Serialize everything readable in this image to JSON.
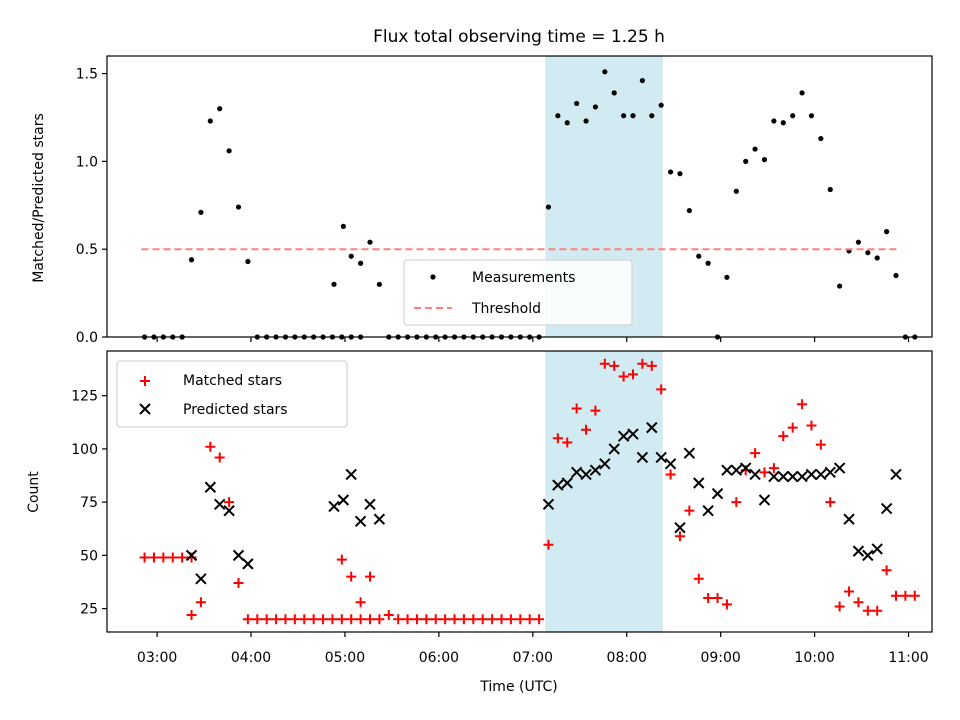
{
  "chart_data": {
    "type": "scatter",
    "title": "Flux total observing time = 1.25 h",
    "xlabel": "Time (UTC)",
    "x_tick_labels": [
      "03:00",
      "04:00",
      "05:00",
      "06:00",
      "07:00",
      "08:00",
      "09:00",
      "10:00",
      "11:00"
    ],
    "xlim": [
      "02:28",
      "11:15"
    ],
    "highlight_span": [
      "07:08",
      "08:23"
    ],
    "highlight_color": "#add8e6",
    "panels": [
      {
        "ylabel": "Matched/Predicted stars",
        "ylim": [
          0,
          1.6
        ],
        "y_ticks": [
          0.0,
          0.5,
          1.0,
          1.5
        ],
        "y_tick_labels": [
          "0.0",
          "0.5",
          "1.0",
          "1.5"
        ],
        "legend_position": "lower center",
        "legend_entries": [
          "Measurements",
          "Threshold"
        ],
        "series": [
          {
            "name": "Measurements",
            "marker": "dot",
            "color": "#000000",
            "points": [
              [
                "02:52",
                0
              ],
              [
                "02:58",
                0
              ],
              [
                "03:04",
                0
              ],
              [
                "03:10",
                0
              ],
              [
                "03:16",
                0
              ],
              [
                "03:22",
                0.44
              ],
              [
                "03:28",
                0.71
              ],
              [
                "03:34",
                1.23
              ],
              [
                "03:40",
                1.3
              ],
              [
                "03:46",
                1.06
              ],
              [
                "03:52",
                0.74
              ],
              [
                "03:58",
                0.43
              ],
              [
                "04:04",
                0
              ],
              [
                "04:10",
                0
              ],
              [
                "04:16",
                0
              ],
              [
                "04:22",
                0
              ],
              [
                "04:28",
                0
              ],
              [
                "04:34",
                0
              ],
              [
                "04:40",
                0
              ],
              [
                "04:46",
                0
              ],
              [
                "04:52",
                0
              ],
              [
                "04:58",
                0
              ],
              [
                "05:04",
                0
              ],
              [
                "05:10",
                0
              ],
              [
                "04:53",
                0.3
              ],
              [
                "04:59",
                0.63
              ],
              [
                "05:04",
                0.46
              ],
              [
                "05:10",
                0.42
              ],
              [
                "05:16",
                0.54
              ],
              [
                "05:22",
                0.3
              ],
              [
                "05:28",
                0
              ],
              [
                "05:34",
                0
              ],
              [
                "05:40",
                0
              ],
              [
                "05:46",
                0
              ],
              [
                "05:52",
                0
              ],
              [
                "05:58",
                0
              ],
              [
                "06:04",
                0
              ],
              [
                "06:10",
                0
              ],
              [
                "06:16",
                0
              ],
              [
                "06:22",
                0
              ],
              [
                "06:28",
                0
              ],
              [
                "06:34",
                0
              ],
              [
                "06:40",
                0
              ],
              [
                "06:46",
                0
              ],
              [
                "06:52",
                0
              ],
              [
                "06:58",
                0
              ],
              [
                "07:04",
                0
              ],
              [
                "07:10",
                0.74
              ],
              [
                "07:16",
                1.26
              ],
              [
                "07:22",
                1.22
              ],
              [
                "07:28",
                1.33
              ],
              [
                "07:34",
                1.23
              ],
              [
                "07:40",
                1.31
              ],
              [
                "07:46",
                1.51
              ],
              [
                "07:52",
                1.39
              ],
              [
                "07:58",
                1.26
              ],
              [
                "08:04",
                1.26
              ],
              [
                "08:10",
                1.46
              ],
              [
                "08:16",
                1.26
              ],
              [
                "08:22",
                1.32
              ],
              [
                "08:28",
                0.94
              ],
              [
                "08:34",
                0.93
              ],
              [
                "08:40",
                0.72
              ],
              [
                "08:46",
                0.46
              ],
              [
                "08:52",
                0.42
              ],
              [
                "08:58",
                0
              ],
              [
                "09:04",
                0.34
              ],
              [
                "09:10",
                0.83
              ],
              [
                "09:16",
                1.0
              ],
              [
                "09:22",
                1.07
              ],
              [
                "09:28",
                1.01
              ],
              [
                "09:34",
                1.23
              ],
              [
                "09:40",
                1.22
              ],
              [
                "09:46",
                1.26
              ],
              [
                "09:52",
                1.39
              ],
              [
                "09:58",
                1.26
              ],
              [
                "10:04",
                1.13
              ],
              [
                "10:10",
                0.84
              ],
              [
                "10:16",
                0.29
              ],
              [
                "10:22",
                0.49
              ],
              [
                "10:28",
                0.54
              ],
              [
                "10:34",
                0.48
              ],
              [
                "10:40",
                0.45
              ],
              [
                "10:46",
                0.6
              ],
              [
                "10:52",
                0.35
              ],
              [
                "10:58",
                0
              ],
              [
                "11:04",
                0
              ]
            ]
          },
          {
            "name": "Threshold",
            "marker": "dashed-line",
            "color": "#ff7f7f",
            "x": [
              "02:50",
              "10:53"
            ],
            "y": [
              0.5,
              0.5
            ]
          }
        ]
      },
      {
        "ylabel": "Count",
        "ylim": [
          14,
          146
        ],
        "y_ticks": [
          25,
          50,
          75,
          100,
          125
        ],
        "y_tick_labels": [
          "25",
          "50",
          "75",
          "100",
          "125"
        ],
        "legend_position": "upper left",
        "legend_entries": [
          "Matched stars",
          "Predicted stars"
        ],
        "series": [
          {
            "name": "Matched stars",
            "marker": "plus",
            "color": "#ff0000",
            "points": [
              [
                "02:52",
                49
              ],
              [
                "02:58",
                49
              ],
              [
                "03:04",
                49
              ],
              [
                "03:10",
                49
              ],
              [
                "03:16",
                49
              ],
              [
                "03:22",
                49
              ],
              [
                "03:22",
                22
              ],
              [
                "03:28",
                28
              ],
              [
                "03:34",
                101
              ],
              [
                "03:40",
                96
              ],
              [
                "03:46",
                75
              ],
              [
                "03:52",
                37
              ],
              [
                "03:58",
                20
              ],
              [
                "04:04",
                20
              ],
              [
                "04:10",
                20
              ],
              [
                "04:16",
                20
              ],
              [
                "04:22",
                20
              ],
              [
                "04:28",
                20
              ],
              [
                "04:34",
                20
              ],
              [
                "04:40",
                20
              ],
              [
                "04:46",
                20
              ],
              [
                "04:52",
                20
              ],
              [
                "04:58",
                20
              ],
              [
                "05:04",
                20
              ],
              [
                "05:10",
                20
              ],
              [
                "05:16",
                20
              ],
              [
                "05:22",
                20
              ],
              [
                "05:28",
                22
              ],
              [
                "04:58",
                48
              ],
              [
                "05:04",
                40
              ],
              [
                "05:10",
                28
              ],
              [
                "05:16",
                40
              ],
              [
                "05:34",
                20
              ],
              [
                "05:40",
                20
              ],
              [
                "05:46",
                20
              ],
              [
                "05:52",
                20
              ],
              [
                "05:58",
                20
              ],
              [
                "06:04",
                20
              ],
              [
                "06:10",
                20
              ],
              [
                "06:16",
                20
              ],
              [
                "06:22",
                20
              ],
              [
                "06:28",
                20
              ],
              [
                "06:34",
                20
              ],
              [
                "06:40",
                20
              ],
              [
                "06:46",
                20
              ],
              [
                "06:52",
                20
              ],
              [
                "06:58",
                20
              ],
              [
                "07:04",
                20
              ],
              [
                "07:10",
                55
              ],
              [
                "07:16",
                105
              ],
              [
                "07:22",
                103
              ],
              [
                "07:28",
                119
              ],
              [
                "07:34",
                109
              ],
              [
                "07:40",
                118
              ],
              [
                "07:46",
                140
              ],
              [
                "07:52",
                139
              ],
              [
                "07:58",
                134
              ],
              [
                "08:04",
                135
              ],
              [
                "08:10",
                140
              ],
              [
                "08:16",
                139
              ],
              [
                "08:22",
                128
              ],
              [
                "08:28",
                88
              ],
              [
                "08:34",
                59
              ],
              [
                "08:40",
                71
              ],
              [
                "08:46",
                39
              ],
              [
                "08:52",
                30
              ],
              [
                "08:58",
                30
              ],
              [
                "09:04",
                27
              ],
              [
                "09:10",
                75
              ],
              [
                "09:16",
                90
              ],
              [
                "09:22",
                98
              ],
              [
                "09:28",
                89
              ],
              [
                "09:34",
                91
              ],
              [
                "09:40",
                106
              ],
              [
                "09:46",
                110
              ],
              [
                "09:52",
                121
              ],
              [
                "09:58",
                111
              ],
              [
                "10:04",
                102
              ],
              [
                "10:10",
                75
              ],
              [
                "10:16",
                26
              ],
              [
                "10:22",
                33
              ],
              [
                "10:28",
                28
              ],
              [
                "10:34",
                24
              ],
              [
                "10:40",
                24
              ],
              [
                "10:46",
                43
              ],
              [
                "10:52",
                31
              ],
              [
                "10:58",
                31
              ],
              [
                "11:04",
                31
              ]
            ]
          },
          {
            "name": "Predicted stars",
            "marker": "x",
            "color": "#000000",
            "points": [
              [
                "03:22",
                50
              ],
              [
                "03:28",
                39
              ],
              [
                "03:34",
                82
              ],
              [
                "03:40",
                74
              ],
              [
                "03:46",
                71
              ],
              [
                "03:52",
                50
              ],
              [
                "03:58",
                46
              ],
              [
                "04:53",
                73
              ],
              [
                "04:59",
                76
              ],
              [
                "05:04",
                88
              ],
              [
                "05:10",
                66
              ],
              [
                "05:16",
                74
              ],
              [
                "05:22",
                67
              ],
              [
                "07:10",
                74
              ],
              [
                "07:16",
                83
              ],
              [
                "07:22",
                84
              ],
              [
                "07:28",
                89
              ],
              [
                "07:34",
                88
              ],
              [
                "07:40",
                90
              ],
              [
                "07:46",
                93
              ],
              [
                "07:52",
                100
              ],
              [
                "07:58",
                106
              ],
              [
                "08:04",
                107
              ],
              [
                "08:10",
                96
              ],
              [
                "08:16",
                110
              ],
              [
                "08:22",
                96
              ],
              [
                "08:28",
                93
              ],
              [
                "08:34",
                63
              ],
              [
                "08:40",
                98
              ],
              [
                "08:46",
                84
              ],
              [
                "08:52",
                71
              ],
              [
                "08:58",
                79
              ],
              [
                "09:04",
                90
              ],
              [
                "09:10",
                90
              ],
              [
                "09:16",
                91
              ],
              [
                "09:22",
                88
              ],
              [
                "09:28",
                76
              ],
              [
                "09:34",
                87
              ],
              [
                "09:40",
                87
              ],
              [
                "09:46",
                87
              ],
              [
                "09:52",
                87
              ],
              [
                "09:58",
                88
              ],
              [
                "10:04",
                88
              ],
              [
                "10:10",
                89
              ],
              [
                "10:16",
                91
              ],
              [
                "10:22",
                67
              ],
              [
                "10:28",
                52
              ],
              [
                "10:34",
                50
              ],
              [
                "10:40",
                53
              ],
              [
                "10:46",
                72
              ],
              [
                "10:52",
                88
              ]
            ]
          }
        ]
      }
    ]
  }
}
